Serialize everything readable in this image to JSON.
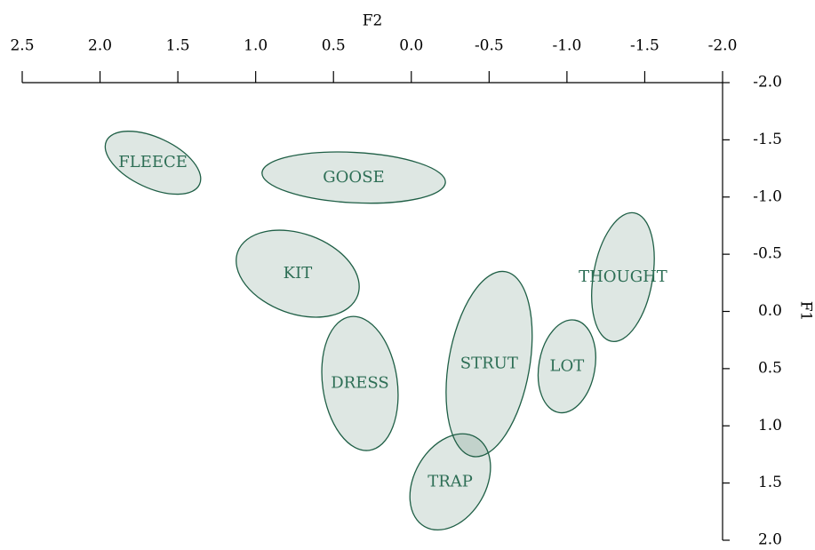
{
  "chart_data": {
    "type": "ellipse",
    "xlabel": "F2",
    "ylabel": "F1",
    "xlim": [
      2.5,
      -2.0
    ],
    "ylim": [
      -2.0,
      2.0
    ],
    "xticks": [
      {
        "value": 2.5,
        "label": "2.5"
      },
      {
        "value": 2.0,
        "label": "2.0"
      },
      {
        "value": 1.5,
        "label": "1.5"
      },
      {
        "value": 1.0,
        "label": "1.0"
      },
      {
        "value": 0.5,
        "label": "0.5"
      },
      {
        "value": 0,
        "label": "0.0"
      },
      {
        "value": -0.5,
        "label": "-0.5"
      },
      {
        "value": -1.0,
        "label": "-1.0"
      },
      {
        "value": -1.5,
        "label": "-1.5"
      },
      {
        "value": -2.0,
        "label": "-2.0"
      }
    ],
    "yticks": [
      {
        "value": -2.0,
        "label": "-2.0"
      },
      {
        "value": -1.5,
        "label": "-1.5"
      },
      {
        "value": -1.0,
        "label": "-1.0"
      },
      {
        "value": -0.5,
        "label": "-0.5"
      },
      {
        "value": 0,
        "label": "0.0"
      },
      {
        "value": 0.5,
        "label": "0.5"
      },
      {
        "value": 1.0,
        "label": "1.0"
      },
      {
        "value": 1.5,
        "label": "1.5"
      },
      {
        "value": 2.0,
        "label": "2.0"
      }
    ],
    "color": "#1f5f46",
    "ellipses": [
      {
        "name": "FLEECE",
        "x": 1.66,
        "y": -1.3,
        "rx": 0.33,
        "ry": 0.22,
        "angle": 25
      },
      {
        "name": "GOOSE",
        "x": 0.37,
        "y": -1.17,
        "rx": 0.59,
        "ry": 0.22,
        "angle": 3
      },
      {
        "name": "KIT",
        "x": 0.73,
        "y": -0.33,
        "rx": 0.41,
        "ry": 0.35,
        "angle": 20
      },
      {
        "name": "DRESS",
        "x": 0.33,
        "y": 0.63,
        "rx": 0.24,
        "ry": 0.59,
        "angle": -8
      },
      {
        "name": "STRUT",
        "x": -0.5,
        "y": 0.46,
        "rx": 0.26,
        "ry": 0.82,
        "angle": 10
      },
      {
        "name": "TRAP",
        "x": -0.25,
        "y": 1.49,
        "rx": 0.23,
        "ry": 0.45,
        "angle": 30
      },
      {
        "name": "LOT",
        "x": -1.0,
        "y": 0.48,
        "rx": 0.18,
        "ry": 0.41,
        "angle": 10
      },
      {
        "name": "THOUGHT",
        "x": -1.36,
        "y": -0.3,
        "rx": 0.19,
        "ry": 0.57,
        "angle": 10
      }
    ]
  }
}
